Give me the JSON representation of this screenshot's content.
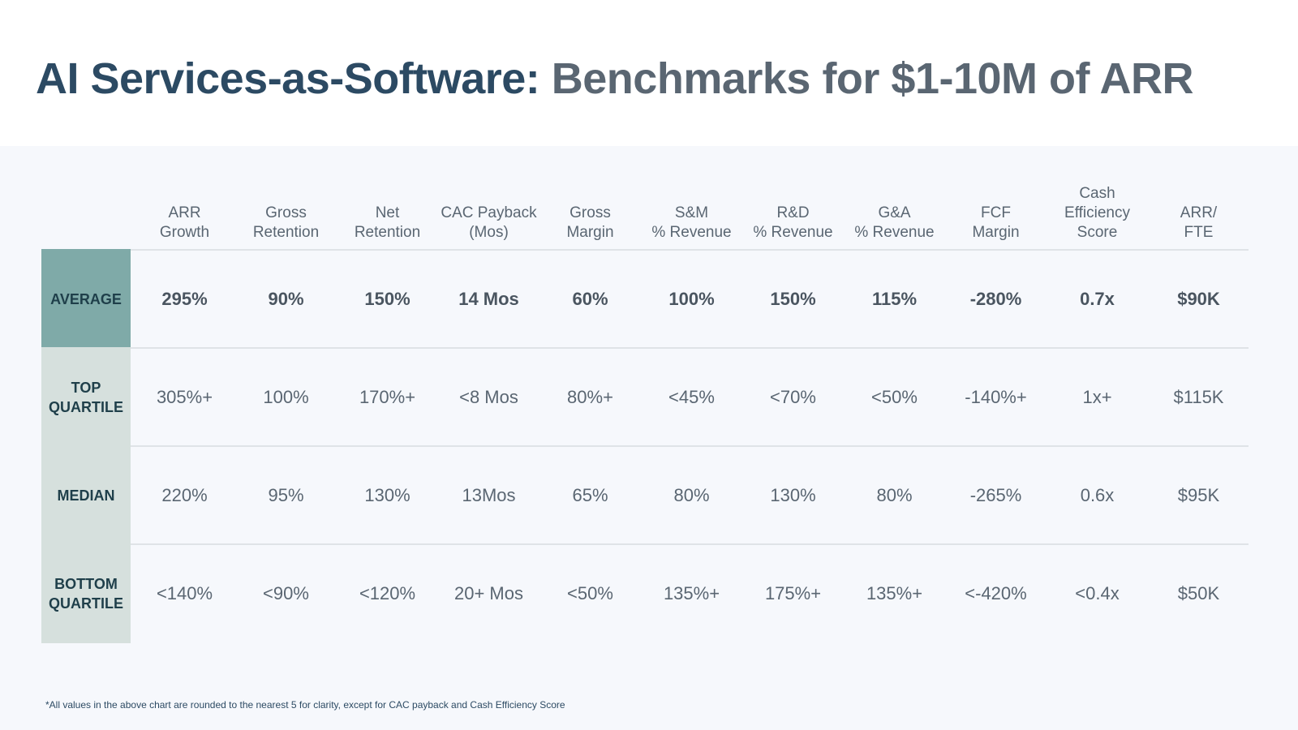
{
  "title": {
    "part1": "AI Services-as-Software:",
    "part2": "Benchmarks for $1-10M of ARR"
  },
  "colors": {
    "title_dark": "#2c4a63",
    "title_gray": "#5a6672",
    "average_label_bg": "#7faaa8",
    "other_label_bg": "#d6e0dd",
    "panel_bg": "#f6f8fc"
  },
  "table": {
    "columns": [
      {
        "lines": [
          "ARR",
          "Growth"
        ]
      },
      {
        "lines": [
          "Gross",
          "Retention"
        ]
      },
      {
        "lines": [
          "Net",
          "Retention"
        ]
      },
      {
        "lines": [
          "CAC Payback",
          "(Mos)"
        ]
      },
      {
        "lines": [
          "Gross",
          "Margin"
        ]
      },
      {
        "lines": [
          "S&M",
          "% Revenue"
        ]
      },
      {
        "lines": [
          "R&D",
          "% Revenue"
        ]
      },
      {
        "lines": [
          "G&A",
          "% Revenue"
        ]
      },
      {
        "lines": [
          "FCF",
          "Margin"
        ]
      },
      {
        "lines": [
          "Cash",
          "Efficiency",
          "Score"
        ]
      },
      {
        "lines": [
          "ARR/",
          "FTE"
        ]
      }
    ],
    "rows": [
      {
        "key": "average",
        "label_lines": [
          "AVERAGE"
        ],
        "values": [
          "295%",
          "90%",
          "150%",
          "14 Mos",
          "60%",
          "100%",
          "150%",
          "115%",
          "-280%",
          "0.7x",
          "$90K"
        ]
      },
      {
        "key": "top-quartile",
        "label_lines": [
          "TOP",
          "QUARTILE"
        ],
        "values": [
          "305%+",
          "100%",
          "170%+",
          "<8 Mos",
          "80%+",
          "<45%",
          "<70%",
          "<50%",
          "-140%+",
          "1x+",
          "$115K"
        ]
      },
      {
        "key": "median",
        "label_lines": [
          "MEDIAN"
        ],
        "values": [
          "220%",
          "95%",
          "130%",
          "13Mos",
          "65%",
          "80%",
          "130%",
          "80%",
          "-265%",
          "0.6x",
          "$95K"
        ]
      },
      {
        "key": "bottom-quartile",
        "label_lines": [
          "BOTTOM",
          "QUARTILE"
        ],
        "values": [
          "<140%",
          "<90%",
          "<120%",
          "20+ Mos",
          "<50%",
          "135%+",
          "175%+",
          "135%+",
          "<-420%",
          "<0.4x",
          "$50K"
        ]
      }
    ]
  },
  "footnote": "*All values in the above chart are rounded to the nearest 5 for clarity, except for CAC payback and Cash Efficiency Score"
}
